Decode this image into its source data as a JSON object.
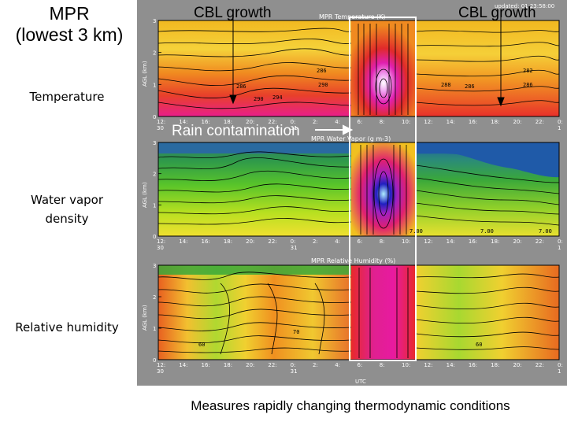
{
  "title": {
    "line1": "MPR",
    "line2": "(lowest 3 km)"
  },
  "row_labels": {
    "temperature": "Temperature",
    "water_vapor_1": "Water vapor",
    "water_vapor_2": "density",
    "relative_humidity": "Relative humidity"
  },
  "annotations": {
    "cbl_growth_left": "CBL growth",
    "cbl_growth_right": "CBL growth",
    "rain_contamination": "Rain contamination",
    "updated": "updated: 01 23:58:00"
  },
  "caption": "Measures rapidly changing thermodynamic conditions",
  "colors": {
    "panel_bg": "#8f8f8f",
    "highlight_box": "#ffffff"
  },
  "chart_data": [
    {
      "type": "heatmap",
      "title": "MPR Temperature (K)",
      "ylabel": "AGL (km)",
      "ylim": [
        0,
        3
      ],
      "yticks": [
        "0",
        "1",
        "2",
        "3"
      ],
      "xlabel": "UTC",
      "xticks": [
        "12:",
        "14:",
        "16:",
        "18:",
        "20:",
        "22:",
        "0:",
        "2:",
        "4:",
        "6:",
        "8:",
        "10:",
        "12:",
        "14:",
        "16:",
        "18:",
        "20:",
        "22:",
        "0:"
      ],
      "day_labels": [
        "30",
        "31",
        "1"
      ],
      "contour_labels": [
        "286",
        "290",
        "294",
        "286",
        "290",
        "288",
        "286",
        "282",
        "286"
      ]
    },
    {
      "type": "heatmap",
      "title": "MPR Water Vapor (g m-3)",
      "ylabel": "AGL (km)",
      "ylim": [
        0,
        3
      ],
      "yticks": [
        "0",
        "1",
        "2",
        "3"
      ],
      "xlabel": "UTC",
      "xticks": [
        "12:",
        "14:",
        "16:",
        "18:",
        "20:",
        "22:",
        "0:",
        "2:",
        "4:",
        "6:",
        "8:",
        "10:",
        "12:",
        "14:",
        "16:",
        "18:",
        "20:",
        "22:",
        "0:"
      ],
      "day_labels": [
        "30",
        "31",
        "1"
      ],
      "contour_labels": [
        "7.00",
        "7.00",
        "7.00"
      ]
    },
    {
      "type": "heatmap",
      "title": "MPR Relative Humidity (%)",
      "ylabel": "AGL (km)",
      "ylim": [
        0,
        3
      ],
      "yticks": [
        "0",
        "1",
        "2",
        "3"
      ],
      "xlabel": "UTC",
      "xticks": [
        "12:",
        "14:",
        "16:",
        "18:",
        "20:",
        "22:",
        "0:",
        "2:",
        "4:",
        "6:",
        "8:",
        "10:",
        "12:",
        "14:",
        "16:",
        "18:",
        "20:",
        "22:",
        "0:"
      ],
      "day_labels": [
        "30",
        "31",
        "1"
      ],
      "contour_labels": [
        "60",
        "70",
        "60"
      ]
    }
  ]
}
